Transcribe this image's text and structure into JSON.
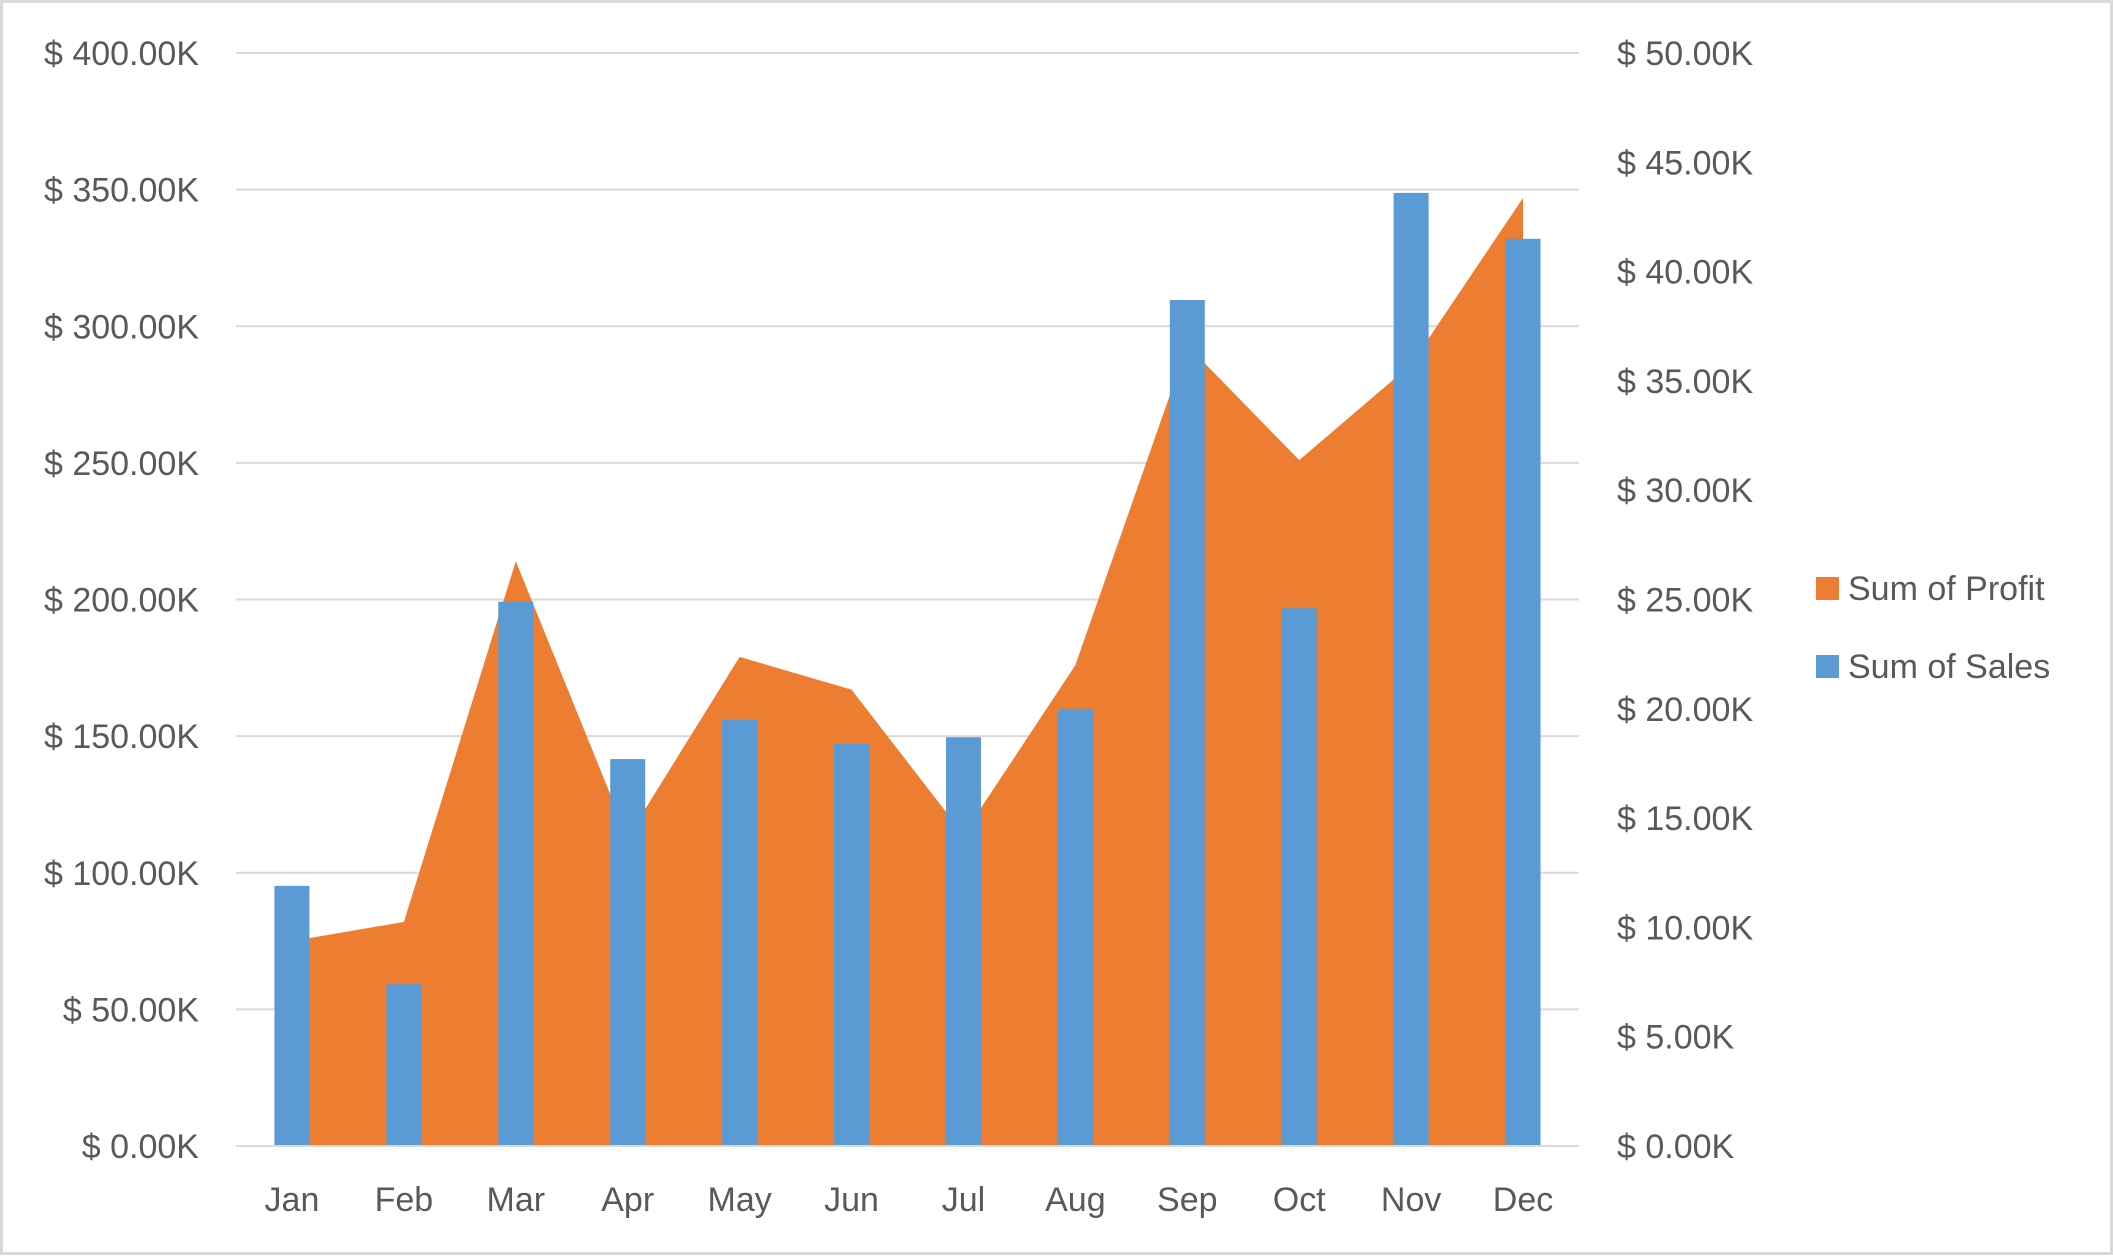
{
  "chart_data": {
    "type": "bar",
    "categories": [
      "Jan",
      "Feb",
      "Mar",
      "Apr",
      "May",
      "Jun",
      "Jul",
      "Aug",
      "Sep",
      "Oct",
      "Nov",
      "Dec"
    ],
    "series": [
      {
        "name": "Sum of Profit",
        "type": "area",
        "axis": "left",
        "color": "#ed7d31",
        "values": [
          75,
          82,
          214,
          113,
          179,
          167,
          114,
          176,
          293,
          251,
          286,
          347
        ]
      },
      {
        "name": "Sum of Sales",
        "type": "bar",
        "axis": "right",
        "color": "#5b9bd5",
        "values": [
          11.9,
          7.4,
          24.9,
          17.7,
          19.5,
          18.4,
          18.7,
          20.0,
          38.7,
          24.6,
          43.6,
          41.5
        ]
      }
    ],
    "y_left": {
      "ylim": [
        0,
        400
      ],
      "ticks": [
        0,
        50,
        100,
        150,
        200,
        250,
        300,
        350,
        400
      ],
      "tick_labels": [
        "$ 0.00K",
        "$ 50.00K",
        "$ 100.00K",
        "$ 150.00K",
        "$ 200.00K",
        "$ 250.00K",
        "$ 300.00K",
        "$ 350.00K",
        "$ 400.00K"
      ]
    },
    "y_right": {
      "ylim": [
        0,
        50
      ],
      "ticks": [
        0,
        5,
        10,
        15,
        20,
        25,
        30,
        35,
        40,
        45,
        50
      ],
      "tick_labels": [
        "$ 0.00K",
        "$ 5.00K",
        "$ 10.00K",
        "$ 15.00K",
        "$ 20.00K",
        "$ 25.00K",
        "$ 30.00K",
        "$ 35.00K",
        "$ 40.00K",
        "$ 45.00K",
        "$ 50.00K"
      ]
    },
    "grid": true,
    "legend": {
      "position": "right",
      "entries": [
        "Sum of Profit",
        "Sum of Sales"
      ]
    },
    "title": "",
    "xlabel": "",
    "ylabel": ""
  }
}
